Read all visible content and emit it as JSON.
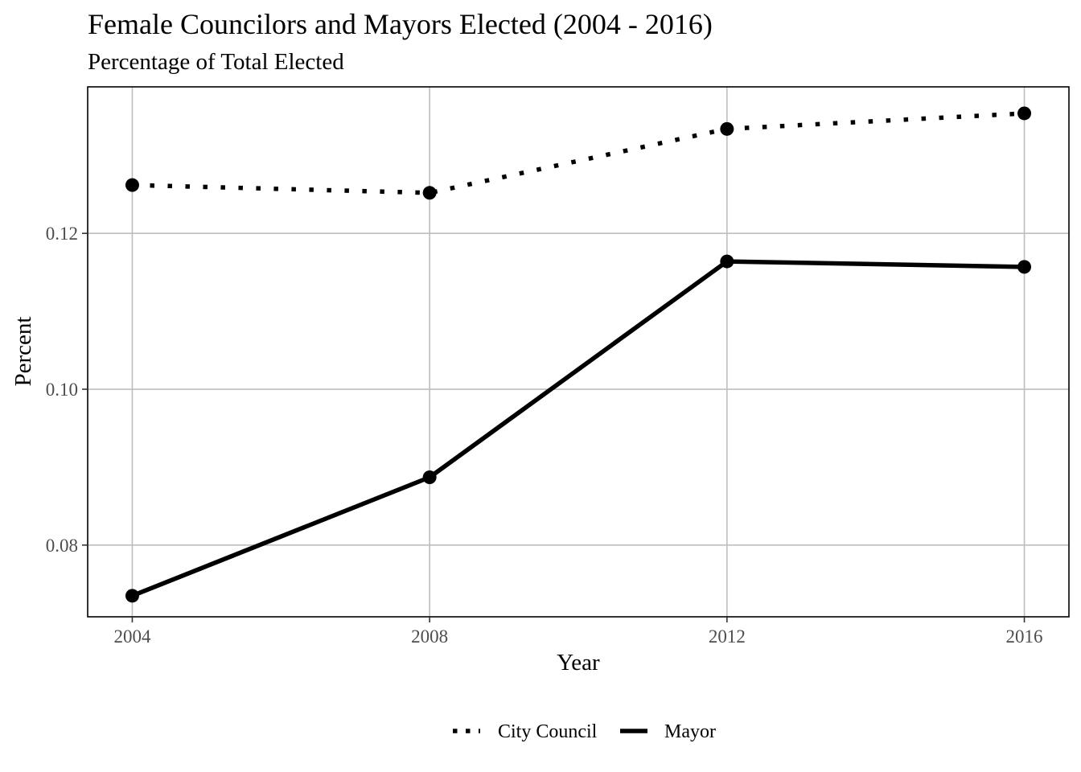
{
  "chart_data": {
    "type": "line",
    "title": "Female Councilors and Mayors Elected (2004 - 2016)",
    "subtitle": "Percentage of Total Elected",
    "xlabel": "Year",
    "ylabel": "Percent",
    "x": [
      2004,
      2008,
      2012,
      2016
    ],
    "x_ticks": [
      "2004",
      "2008",
      "2012",
      "2016"
    ],
    "y_ticks": [
      "0.08",
      "0.10",
      "0.12"
    ],
    "xlim": [
      2003.4,
      2016.6
    ],
    "ylim": [
      0.0708,
      0.1388
    ],
    "grid": true,
    "legend_position": "bottom",
    "series": [
      {
        "name": "City Council",
        "line_style": "dotted",
        "color": "#000000",
        "values": [
          0.1262,
          0.1252,
          0.1334,
          0.1354
        ]
      },
      {
        "name": "Mayor",
        "line_style": "solid",
        "color": "#000000",
        "values": [
          0.0735,
          0.0887,
          0.1164,
          0.1157
        ]
      }
    ]
  }
}
